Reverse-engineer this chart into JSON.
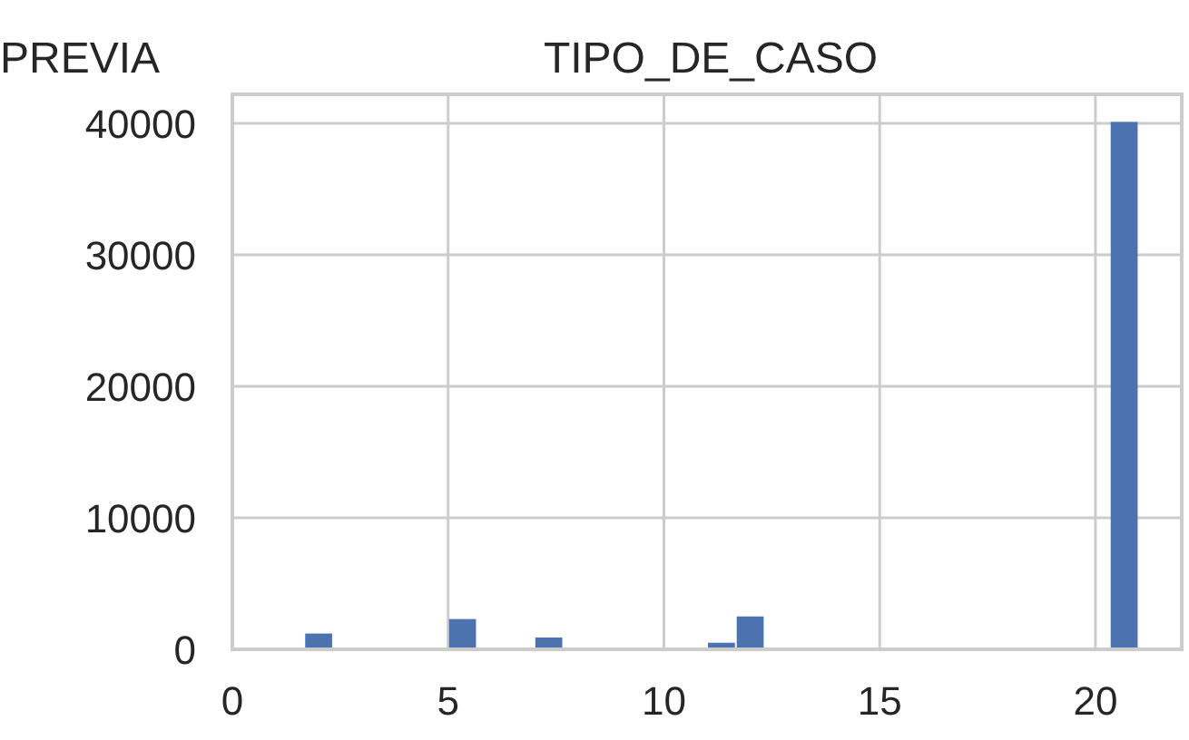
{
  "chart_data": {
    "type": "histogram",
    "title": "TIPO_DE_CASO",
    "annotations": [
      "PREVIA"
    ],
    "bins": [
      1,
      1.667,
      2.333,
      3,
      3.667,
      4.333,
      5,
      5.667,
      6.333,
      7,
      7.667,
      8.333,
      9,
      9.667,
      10.333,
      11,
      11.667,
      12.333,
      13,
      13.667,
      14.333,
      15,
      15.667,
      16.333,
      17,
      17.667,
      18.333,
      19,
      19.667,
      20.333,
      21
    ],
    "values": [
      0,
      1200,
      0,
      0,
      0,
      0,
      2300,
      0,
      0,
      900,
      100,
      0,
      0,
      0,
      0,
      500,
      2500,
      0,
      0,
      0,
      0,
      0,
      0,
      0,
      0,
      0,
      0,
      0,
      0,
      40100
    ],
    "color": "#4c72b0",
    "xlim": [
      0,
      22
    ],
    "ylim": [
      0,
      42200
    ],
    "xticks": [
      0,
      5,
      10,
      15,
      20
    ],
    "yticks": [
      0,
      10000,
      20000,
      30000,
      40000
    ],
    "grid": true
  }
}
